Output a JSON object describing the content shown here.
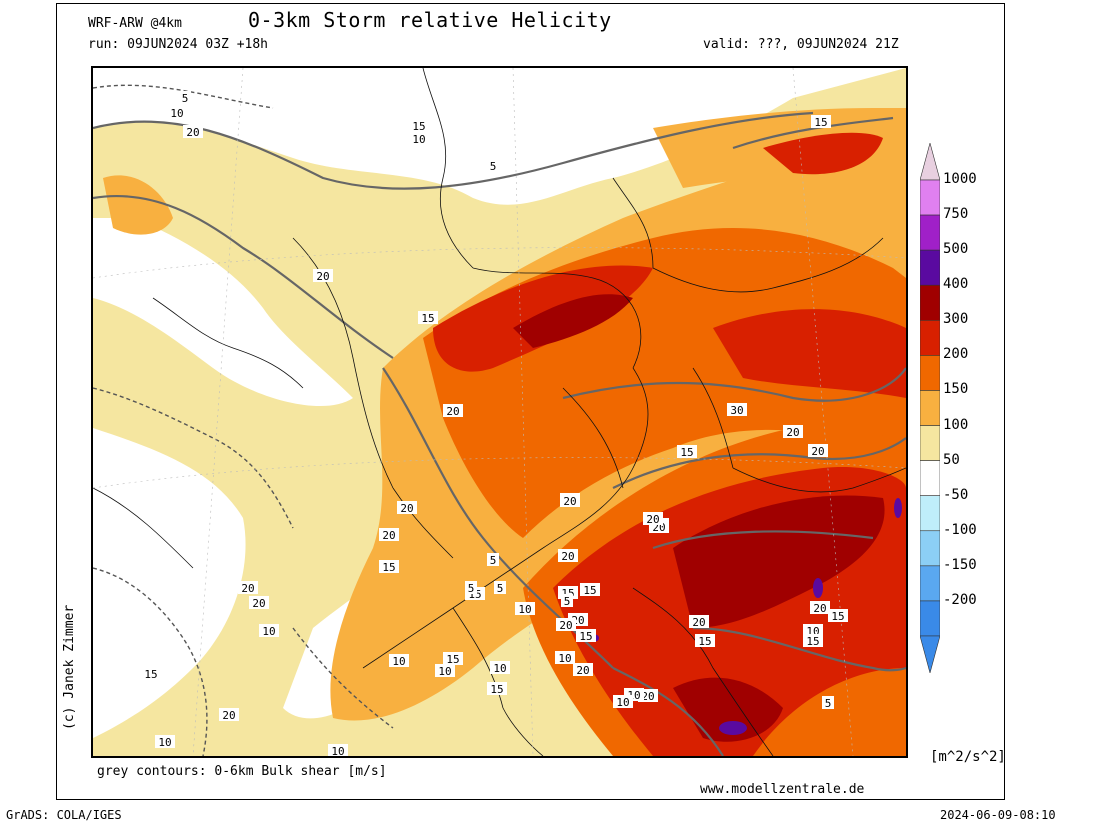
{
  "header": {
    "model": "WRF-ARW @4km",
    "title": "0-3km Storm relative Helicity",
    "run": "run: 09JUN2024 03Z +18h",
    "valid": "valid: ???, 09JUN2024 21Z"
  },
  "credit": "(c) Janek Zimmer",
  "contour_note": "grey contours: 0-6km Bulk shear [m/s]",
  "website": "www.modellzentrale.de",
  "footer": {
    "left": "GrADS: COLA/IGES",
    "right": "2024-06-09-08:10"
  },
  "colorbar": {
    "unit": "[m^2/s^2]",
    "levels": [
      {
        "label": "1000",
        "color": "#e8d0e0"
      },
      {
        "label": "750",
        "color": "#e080f0"
      },
      {
        "label": "500",
        "color": "#a020c8"
      },
      {
        "label": "400",
        "color": "#5a0aa0"
      },
      {
        "label": "300",
        "color": "#a00000"
      },
      {
        "label": "200",
        "color": "#d82000"
      },
      {
        "label": "150",
        "color": "#f06800"
      },
      {
        "label": "100",
        "color": "#f8b040"
      },
      {
        "label": "50",
        "color": "#f5e6a0"
      },
      {
        "label": "-50",
        "color": "#ffffff"
      },
      {
        "label": "-100",
        "color": "#bfeefa"
      },
      {
        "label": "-150",
        "color": "#8ccff5"
      },
      {
        "label": "-200",
        "color": "#5aa8f0"
      }
    ],
    "bottom_color": "#3a8ae8"
  },
  "contour_labels": [
    "5",
    "10",
    "20",
    "15",
    "10",
    "5",
    "20",
    "15",
    "20",
    "20",
    "20",
    "15",
    "30",
    "20",
    "20",
    "15",
    "10",
    "20",
    "20",
    "20",
    "20",
    "20",
    "20",
    "20",
    "15",
    "15",
    "20",
    "15",
    "15",
    "10",
    "15",
    "5",
    "10",
    "20",
    "15",
    "20",
    "15",
    "10",
    "5",
    "15",
    "10",
    "15",
    "10",
    "10",
    "10",
    "20",
    "10",
    "20",
    "15",
    "10",
    "20",
    "5",
    "15",
    "5",
    "10",
    "5",
    "20",
    "10"
  ]
}
